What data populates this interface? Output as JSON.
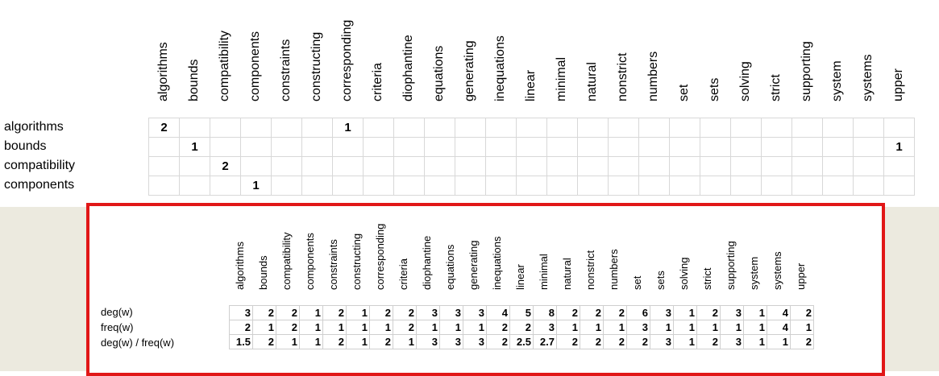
{
  "words": [
    "algorithms",
    "bounds",
    "compatibility",
    "components",
    "constraints",
    "constructing",
    "corresponding",
    "criteria",
    "diophantine",
    "equations",
    "generating",
    "inequations",
    "linear",
    "minimal",
    "natural",
    "nonstrict",
    "numbers",
    "set",
    "sets",
    "solving",
    "strict",
    "supporting",
    "system",
    "systems",
    "upper"
  ],
  "matrix": {
    "rows": [
      {
        "label": "algorithms",
        "cells": [
          "2",
          "",
          "",
          "",
          "",
          "",
          "1",
          "",
          "",
          "",
          "",
          "",
          "",
          "",
          "",
          "",
          "",
          "",
          "",
          "",
          "",
          "",
          "",
          "",
          ""
        ]
      },
      {
        "label": "bounds",
        "cells": [
          "",
          "1",
          "",
          "",
          "",
          "",
          "",
          "",
          "",
          "",
          "",
          "",
          "",
          "",
          "",
          "",
          "",
          "",
          "",
          "",
          "",
          "",
          "",
          "",
          "1"
        ]
      },
      {
        "label": "compatibility",
        "cells": [
          "",
          "",
          "2",
          "",
          "",
          "",
          "",
          "",
          "",
          "",
          "",
          "",
          "",
          "",
          "",
          "",
          "",
          "",
          "",
          "",
          "",
          "",
          "",
          "",
          ""
        ]
      },
      {
        "label": "components",
        "cells": [
          "",
          "",
          "",
          "1",
          "",
          "",
          "",
          "",
          "",
          "",
          "",
          "",
          "",
          "",
          "",
          "",
          "",
          "",
          "",
          "",
          "",
          "",
          "",
          "",
          ""
        ]
      }
    ]
  },
  "stats": {
    "rows": [
      {
        "label": "deg(w)",
        "cells": [
          "3",
          "2",
          "2",
          "1",
          "2",
          "1",
          "2",
          "2",
          "3",
          "3",
          "3",
          "4",
          "5",
          "8",
          "2",
          "2",
          "2",
          "6",
          "3",
          "1",
          "2",
          "3",
          "1",
          "4",
          "2"
        ]
      },
      {
        "label": "freq(w)",
        "cells": [
          "2",
          "1",
          "2",
          "1",
          "1",
          "1",
          "1",
          "2",
          "1",
          "1",
          "1",
          "2",
          "2",
          "3",
          "1",
          "1",
          "1",
          "3",
          "1",
          "1",
          "1",
          "1",
          "1",
          "4",
          "1"
        ]
      },
      {
        "label": "deg(w) / freq(w)",
        "cells": [
          "1.5",
          "2",
          "1",
          "1",
          "2",
          "1",
          "2",
          "1",
          "3",
          "3",
          "3",
          "2",
          "2.5",
          "2.7",
          "2",
          "2",
          "2",
          "2",
          "3",
          "1",
          "2",
          "3",
          "1",
          "1",
          "2"
        ]
      }
    ]
  },
  "colors": {
    "frame": "#e11717",
    "background_lower": "#eceadf"
  }
}
